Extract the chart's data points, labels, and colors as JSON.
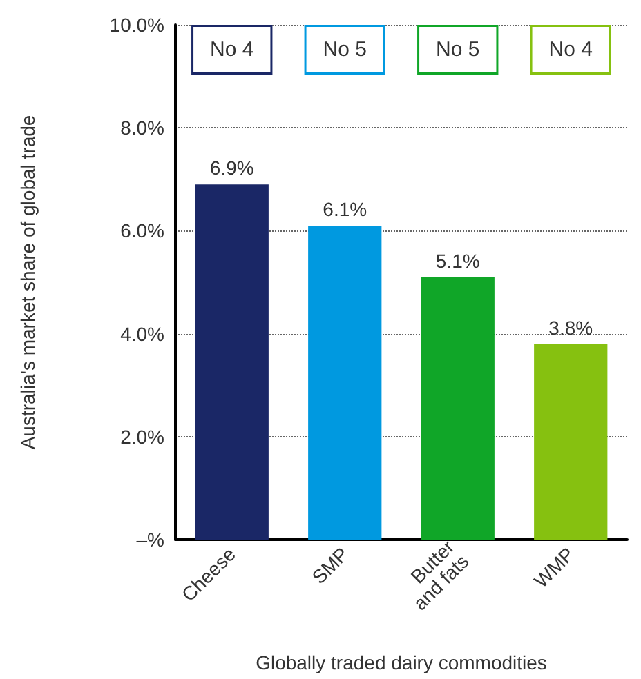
{
  "chart_data": {
    "type": "bar",
    "xlabel": "Globally traded dairy commodities",
    "ylabel": "Australia's market share of global trade",
    "categories": [
      "Cheese",
      "SMP",
      "Butter\nand fats",
      "WMP"
    ],
    "values": [
      6.9,
      6.1,
      5.1,
      3.8
    ],
    "colors": [
      "#1a2766",
      "#0099e0",
      "#10a628",
      "#86c110"
    ],
    "value_labels": [
      "6.9%",
      "6.1%",
      "5.1%",
      "3.8%"
    ],
    "ylim": [
      0,
      10
    ],
    "yticks": [
      {
        "value": 0,
        "label": "–%"
      },
      {
        "value": 2,
        "label": "2.0%"
      },
      {
        "value": 4,
        "label": "4.0%"
      },
      {
        "value": 6,
        "label": "6.0%"
      },
      {
        "value": 8,
        "label": "8.0%"
      },
      {
        "value": 10,
        "label": "10.0%"
      }
    ],
    "grid": "y",
    "annotations": [
      "No 4",
      "No 5",
      "No 5",
      "No 4"
    ]
  }
}
